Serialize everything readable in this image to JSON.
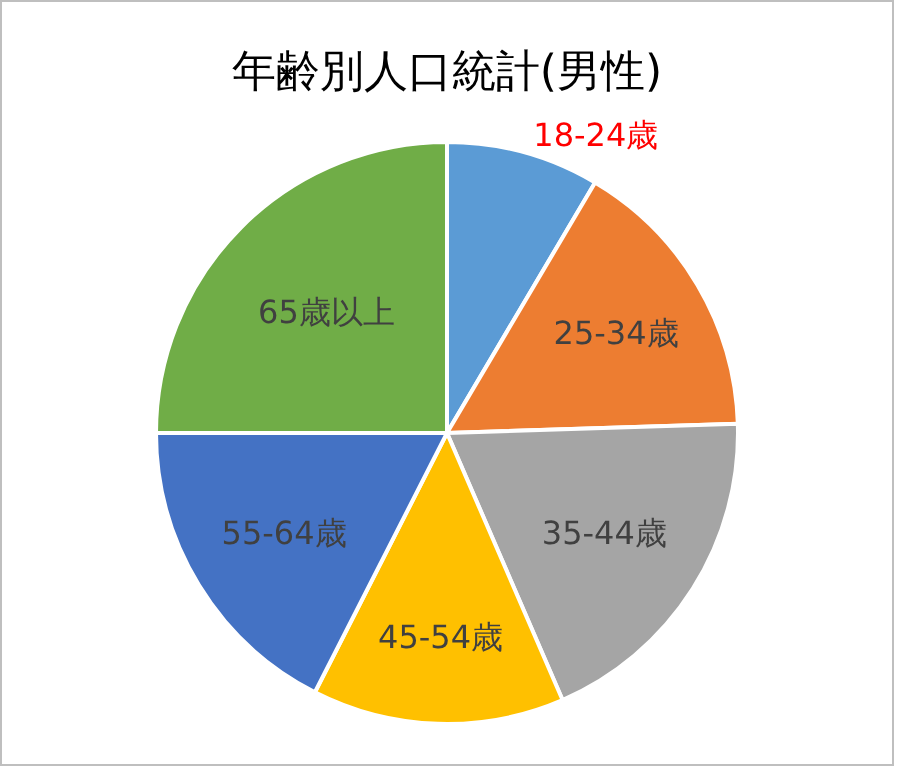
{
  "chart_data": {
    "type": "pie",
    "title": "年齢別人口統計(男性)",
    "categories": [
      "18-24歳",
      "25-34歳",
      "35-44歳",
      "45-54歳",
      "55-64歳",
      "65歳以上"
    ],
    "values": [
      8.5,
      16,
      19,
      14,
      17.5,
      25
    ],
    "colors": [
      "#5b9bd5",
      "#ed7d31",
      "#a5a5a5",
      "#ffc000",
      "#4472c4",
      "#70ad47"
    ],
    "legend": false
  }
}
